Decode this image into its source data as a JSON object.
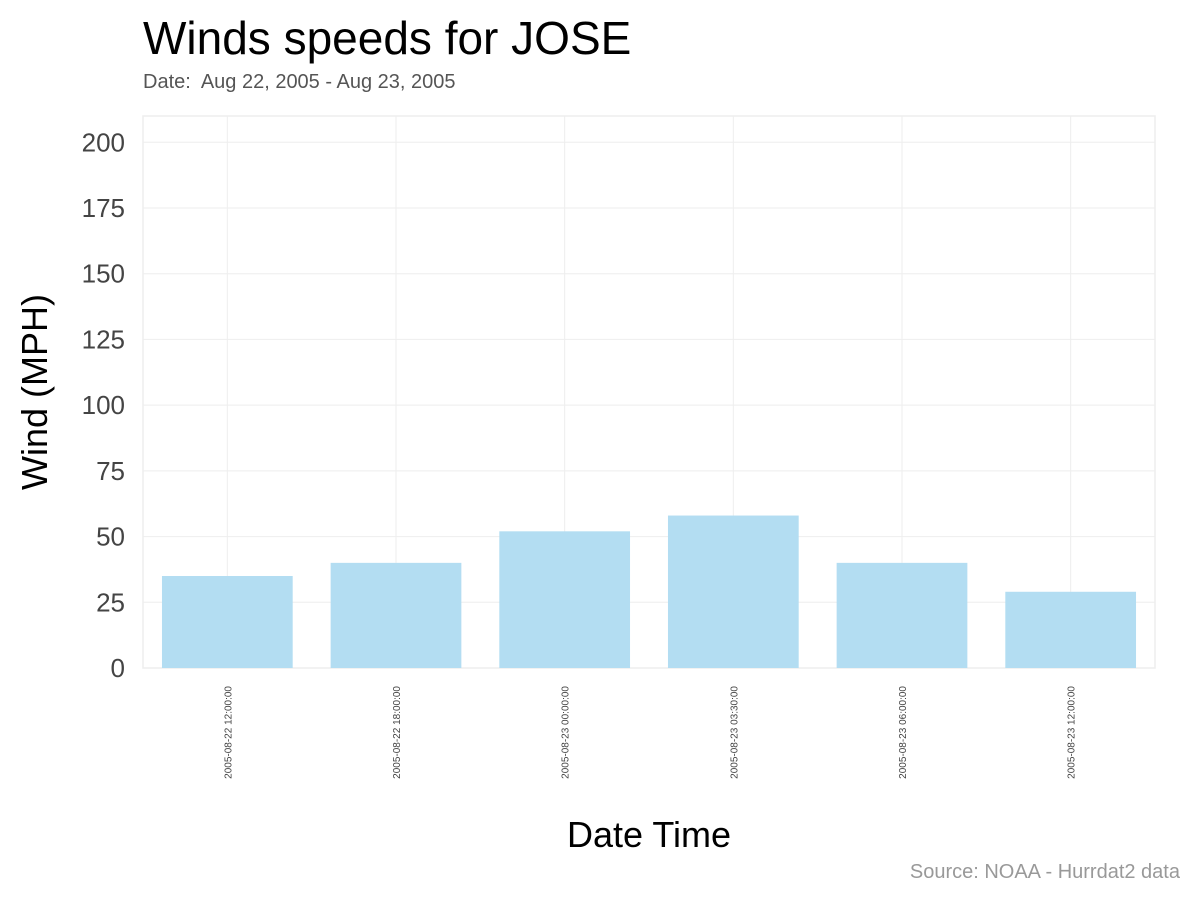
{
  "title": "Winds speeds for JOSE",
  "subtitle": "Date:  Aug 22, 2005 - Aug 23, 2005",
  "caption": "Source: NOAA - Hurrdat2 data",
  "colors": {
    "bar": "#b3ddf2",
    "grid": "#eeeeee",
    "panel_border": "#eeeeee"
  },
  "chart_data": {
    "type": "bar",
    "title": "Winds speeds for JOSE",
    "subtitle": "Date:  Aug 22, 2005 - Aug 23, 2005",
    "xlabel": "Date Time",
    "ylabel": "Wind (MPH)",
    "categories": [
      "2005-08-22 12:00:00",
      "2005-08-22 18:00:00",
      "2005-08-23 00:00:00",
      "2005-08-23 03:30:00",
      "2005-08-23 06:00:00",
      "2005-08-23 12:00:00"
    ],
    "values": [
      35,
      40,
      52,
      58,
      40,
      29
    ],
    "ylim": [
      0,
      210
    ],
    "yticks": [
      0,
      25,
      50,
      75,
      100,
      125,
      150,
      175,
      200
    ],
    "grid": true,
    "legend": "none"
  }
}
